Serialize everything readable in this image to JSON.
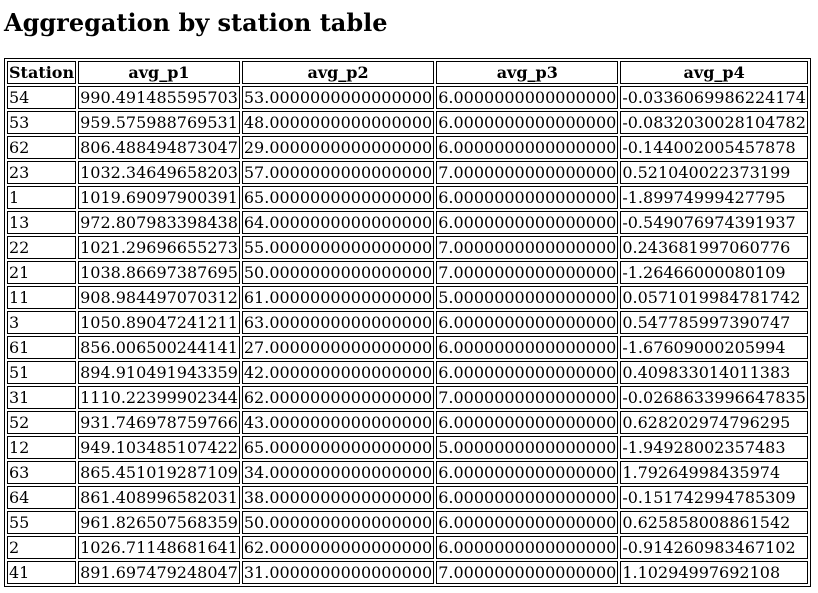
{
  "page": {
    "title": "Aggregation by station table"
  },
  "table": {
    "headers": [
      "Station",
      "avg_p1",
      "avg_p2",
      "avg_p3",
      "avg_p4"
    ],
    "rows": [
      [
        "54",
        "990.491485595703",
        "53.0000000000000000",
        "6.0000000000000000",
        "-0.0336069986224174"
      ],
      [
        "53",
        "959.575988769531",
        "48.0000000000000000",
        "6.0000000000000000",
        "-0.0832030028104782"
      ],
      [
        "62",
        "806.488494873047",
        "29.0000000000000000",
        "6.0000000000000000",
        "-0.144002005457878"
      ],
      [
        "23",
        "1032.34649658203",
        "57.0000000000000000",
        "7.0000000000000000",
        "0.521040022373199"
      ],
      [
        "1",
        "1019.69097900391",
        "65.0000000000000000",
        "6.0000000000000000",
        "-1.89974999427795"
      ],
      [
        "13",
        "972.807983398438",
        "64.0000000000000000",
        "6.0000000000000000",
        "-0.549076974391937"
      ],
      [
        "22",
        "1021.29696655273",
        "55.0000000000000000",
        "7.0000000000000000",
        "0.243681997060776"
      ],
      [
        "21",
        "1038.86697387695",
        "50.0000000000000000",
        "7.0000000000000000",
        "-1.26466000080109"
      ],
      [
        "11",
        "908.984497070312",
        "61.0000000000000000",
        "5.0000000000000000",
        "0.0571019984781742"
      ],
      [
        "3",
        "1050.89047241211",
        "63.0000000000000000",
        "6.0000000000000000",
        "0.547785997390747"
      ],
      [
        "61",
        "856.006500244141",
        "27.0000000000000000",
        "6.0000000000000000",
        "-1.67609000205994"
      ],
      [
        "51",
        "894.910491943359",
        "42.0000000000000000",
        "6.0000000000000000",
        "0.409833014011383"
      ],
      [
        "31",
        "1110.22399902344",
        "62.0000000000000000",
        "7.0000000000000000",
        "-0.0268633996647835"
      ],
      [
        "52",
        "931.746978759766",
        "43.0000000000000000",
        "6.0000000000000000",
        "0.628202974796295"
      ],
      [
        "12",
        "949.103485107422",
        "65.0000000000000000",
        "5.0000000000000000",
        "-1.94928002357483"
      ],
      [
        "63",
        "865.451019287109",
        "34.0000000000000000",
        "6.0000000000000000",
        "1.79264998435974"
      ],
      [
        "64",
        "861.408996582031",
        "38.0000000000000000",
        "6.0000000000000000",
        "-0.151742994785309"
      ],
      [
        "55",
        "961.826507568359",
        "50.0000000000000000",
        "6.0000000000000000",
        "0.625858008861542"
      ],
      [
        "2",
        "1026.71148681641",
        "62.0000000000000000",
        "6.0000000000000000",
        "-0.914260983467102"
      ],
      [
        "41",
        "891.697479248047",
        "31.0000000000000000",
        "7.0000000000000000",
        "1.10294997692108"
      ]
    ]
  }
}
